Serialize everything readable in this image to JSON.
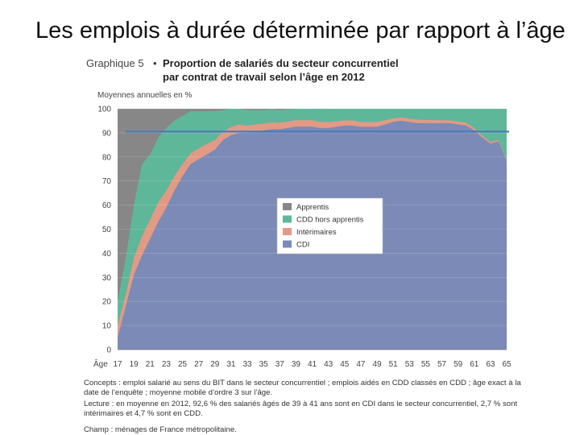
{
  "slide": {
    "title": "Les emplois à durée déterminée par rapport à l’âge"
  },
  "figure": {
    "label": "Graphique 5",
    "bullet": "•",
    "title_line1": "Proportion de salariés du secteur concurrentiel",
    "title_line2": "par contrat de travail selon l’âge en 2012"
  },
  "notes": {
    "concepts": "Concepts : emploi salarié au sens du BIT dans le secteur concurrentiel ; emplois aidés en CDD classés en CDD ; âge exact à la date de l’enquête ; moyenne mobile d’ordre 3 sur l’âge.",
    "lecture": "Lecture : en moyenne en 2012, 92,6 % des salariés âgés de 39 à 41 ans sont en CDI dans le secteur concurrentiel, 2,7 % sont intérimaires et 4,7 % sont en CDD.",
    "champ": "Champ : ménages de France métropolitaine."
  },
  "chart_data": {
    "type": "area",
    "stacked": true,
    "ylabel": "Moyennes annuelles en %",
    "xlabel": "Âge",
    "x": [
      17,
      18,
      19,
      20,
      21,
      22,
      23,
      24,
      25,
      26,
      27,
      28,
      29,
      30,
      31,
      32,
      33,
      34,
      35,
      36,
      37,
      38,
      39,
      40,
      41,
      42,
      43,
      44,
      45,
      46,
      47,
      48,
      49,
      50,
      51,
      52,
      53,
      54,
      55,
      56,
      57,
      58,
      59,
      60,
      61,
      62,
      63,
      64,
      65
    ],
    "x_tick_labels": [
      "17",
      "19",
      "21",
      "23",
      "25",
      "27",
      "29",
      "31",
      "33",
      "35",
      "37",
      "39",
      "41",
      "43",
      "45",
      "47",
      "49",
      "51",
      "53",
      "55",
      "57",
      "59",
      "61",
      "63",
      "65"
    ],
    "ylim": [
      0,
      100
    ],
    "y_ticks": [
      0,
      10,
      20,
      30,
      40,
      50,
      60,
      70,
      80,
      90,
      100
    ],
    "colors": {
      "CDI": "#7b8ab6",
      "Intérimaires": "#e29a84",
      "CDD hors apprentis": "#5fb79a",
      "Apprentis": "#878787",
      "reference_line": "#4a7ab8",
      "background": "#8a8a8a"
    },
    "legend": {
      "position": "center",
      "entries": [
        "Apprentis",
        "CDD hors apprentis",
        "Intérimaires",
        "CDI"
      ]
    },
    "reference_line_y": 90.5,
    "series": [
      {
        "name": "CDI",
        "values": [
          5,
          18,
          31,
          39,
          46,
          53,
          59,
          66,
          72,
          77,
          79,
          81,
          83,
          87,
          89,
          90,
          90,
          90.5,
          91,
          91.5,
          91.5,
          92,
          92.6,
          92.6,
          92.6,
          92,
          92,
          92.5,
          93,
          93,
          92.5,
          92.5,
          92.5,
          93.5,
          94.5,
          95,
          94.5,
          94,
          94,
          94,
          94,
          94,
          93.5,
          93,
          91,
          88,
          85.5,
          86.5,
          78
        ]
      },
      {
        "name": "Intérimaires",
        "values": [
          5,
          5,
          7,
          8,
          8,
          8,
          7,
          6,
          5,
          4.5,
          4.5,
          4.5,
          4,
          3.5,
          3.5,
          3.5,
          3,
          3,
          2.8,
          2.8,
          2.7,
          2.7,
          2.7,
          2.7,
          2.7,
          2.5,
          2.5,
          2.3,
          2.2,
          2.2,
          2,
          2,
          2,
          1.8,
          1.5,
          1.4,
          1.4,
          1.5,
          1.4,
          1.3,
          1.3,
          1.2,
          1.2,
          1.2,
          1,
          0.8,
          0.7,
          0.6,
          0.5
        ]
      },
      {
        "name": "CDD hors apprentis",
        "values": [
          10,
          15,
          22,
          30,
          27,
          27,
          26,
          23,
          20,
          17.5,
          15.5,
          13.5,
          12,
          9,
          7.5,
          6.5,
          6.5,
          6,
          5.7,
          5.5,
          5.3,
          5.1,
          4.7,
          4.7,
          4.7,
          5.4,
          5.5,
          5.2,
          4.8,
          4.8,
          5.5,
          5.5,
          5.5,
          4.7,
          4,
          3.6,
          4.1,
          4.5,
          4.6,
          4.7,
          4.7,
          4.8,
          5.3,
          5.8,
          8,
          11.2,
          13.8,
          12.9,
          21.5
        ]
      },
      {
        "name": "Apprentis",
        "values": [
          80,
          62,
          40,
          23,
          19,
          12,
          8,
          5,
          3,
          1,
          1,
          1,
          1,
          0.5,
          0,
          0,
          0.5,
          0.5,
          0.5,
          0.2,
          0.5,
          0.2,
          0,
          0,
          0,
          0.1,
          0,
          0,
          0,
          0,
          0,
          0,
          0,
          0,
          0,
          0,
          0,
          0,
          0,
          0,
          0,
          0,
          0,
          0,
          0,
          0,
          0,
          0,
          0
        ]
      }
    ]
  }
}
